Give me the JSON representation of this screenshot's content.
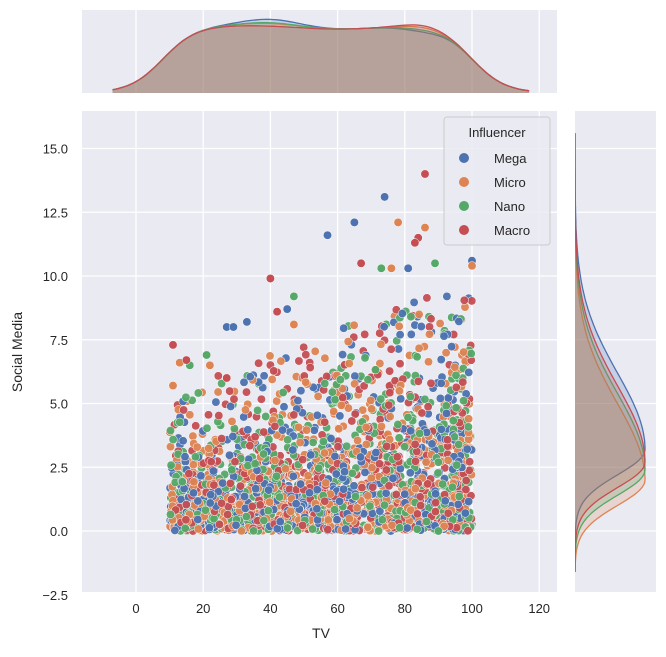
{
  "chart_data": {
    "type": "scatter",
    "subtype": "jointplot",
    "title": "",
    "xlabel": "TV",
    "ylabel": "Social Media",
    "xlim": [
      -13,
      126
    ],
    "ylim": [
      -2.5,
      16.4
    ],
    "x_ticks": [
      0,
      20,
      40,
      60,
      80,
      100,
      120
    ],
    "x_tick_labels": [
      "0",
      "20",
      "40",
      "60",
      "80",
      "100",
      "120"
    ],
    "y_ticks": [
      -2.5,
      0.0,
      2.5,
      5.0,
      7.5,
      10.0,
      12.5,
      15.0
    ],
    "y_tick_labels": [
      "−2.5",
      "0.0",
      "2.5",
      "5.0",
      "7.5",
      "10.0",
      "12.5",
      "15.0"
    ],
    "grid": true,
    "style": "seaborn darkgrid",
    "legend": {
      "title": "Influencer",
      "position": "upper right",
      "entries": [
        {
          "label": "Mega",
          "color": "#4c72b0"
        },
        {
          "label": "Micro",
          "color": "#dd8452"
        },
        {
          "label": "Nano",
          "color": "#55a868"
        },
        {
          "label": "Macro",
          "color": "#c44e52"
        }
      ]
    },
    "series": [
      {
        "name": "Mega",
        "color": "#4c72b0",
        "notable_points": [
          [
            74,
            13.1
          ],
          [
            65,
            12.1
          ],
          [
            57,
            11.6
          ],
          [
            81,
            10.3
          ],
          [
            100,
            10.6
          ],
          [
            45,
            8.7
          ],
          [
            33,
            8.2
          ],
          [
            27,
            8.0
          ],
          [
            29,
            8.0
          ],
          [
            89,
            0.2
          ],
          [
            98,
            0.7
          ]
        ]
      },
      {
        "name": "Micro",
        "color": "#dd8452",
        "notable_points": [
          [
            78,
            12.1
          ],
          [
            86,
            11.9
          ],
          [
            76,
            10.3
          ],
          [
            100,
            10.4
          ],
          [
            11,
            5.7
          ],
          [
            13,
            6.6
          ],
          [
            22,
            6.5
          ],
          [
            47,
            8.1
          ]
        ]
      },
      {
        "name": "Nano",
        "color": "#55a868",
        "notable_points": [
          [
            73,
            10.3
          ],
          [
            89,
            10.5
          ],
          [
            47,
            9.2
          ],
          [
            21,
            6.9
          ],
          [
            16,
            6.5
          ],
          [
            90,
            0.0
          ]
        ]
      },
      {
        "name": "Macro",
        "color": "#c44e52",
        "notable_points": [
          [
            86,
            14.0
          ],
          [
            84,
            11.5
          ],
          [
            83,
            11.3
          ],
          [
            40,
            9.9
          ],
          [
            67,
            10.5
          ],
          [
            42,
            8.6
          ],
          [
            11,
            7.3
          ],
          [
            15,
            6.7
          ],
          [
            27,
            6.0
          ]
        ]
      }
    ],
    "data_cloud": {
      "x_range": [
        10,
        100
      ],
      "y_range": [
        0,
        10.5
      ],
      "description": "dense uniform-in-x scatter; upper envelope rises from ~5.5 at TV=10 to ~10 at TV=100; all categories overlap heavily"
    },
    "marginal_x": {
      "type": "kde",
      "description": "plateau between ~20 and ~90, tails to ~-5 and ~115; slight peak near 40 (Mega) and bump near 85 (Macro)"
    },
    "marginal_y": {
      "type": "kde",
      "description": "right-skewed, peak near Social Media ~2-3, tails from ~-1.5 to ~15.5; Micro peak slightly lower (~2) than Mega (~3.5)"
    }
  }
}
